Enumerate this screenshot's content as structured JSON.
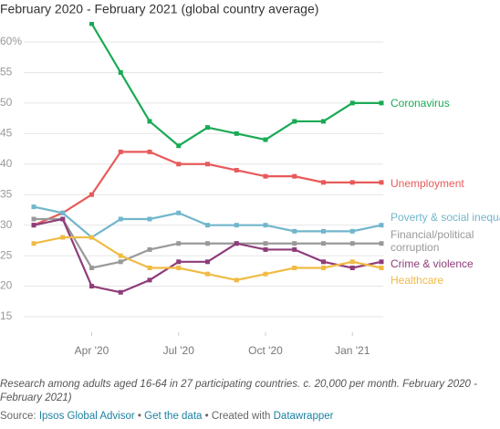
{
  "chart_data": {
    "type": "line",
    "subtitle": "February 2020 - February 2021 (global country average)",
    "categories": [
      null,
      null,
      "Apr '20",
      null,
      null,
      "Jul '20",
      null,
      null,
      "Oct '20",
      null,
      null,
      "Jan '21",
      null
    ],
    "series": [
      {
        "name": "Coronavirus",
        "color": "#1aaa55",
        "values": [
          null,
          null,
          63,
          55,
          47,
          43,
          46,
          45,
          44,
          47,
          47,
          50,
          50
        ]
      },
      {
        "name": "Unemployment",
        "color": "#e85a5a",
        "values": [
          30,
          32,
          35,
          42,
          42,
          40,
          40,
          39,
          38,
          38,
          37,
          37,
          37
        ]
      },
      {
        "name": "Poverty & social inequality",
        "color": "#71b6cc",
        "values": [
          33,
          32,
          28,
          31,
          31,
          32,
          30,
          30,
          30,
          29,
          29,
          29,
          30
        ]
      },
      {
        "name": "Financial/political corruption",
        "color": "#999999",
        "values": [
          31,
          31,
          23,
          24,
          26,
          27,
          27,
          27,
          27,
          27,
          27,
          27,
          27
        ]
      },
      {
        "name": "Crime & violence",
        "color": "#8e3d7a",
        "values": [
          30,
          31,
          20,
          19,
          21,
          24,
          24,
          27,
          26,
          26,
          24,
          23,
          24
        ]
      },
      {
        "name": "Healthcare",
        "color": "#f0bb45",
        "values": [
          27,
          28,
          28,
          25,
          23,
          23,
          22,
          21,
          22,
          23,
          23,
          24,
          23
        ]
      }
    ],
    "ylim": [
      12.3,
      63.6
    ],
    "yticks": [
      15,
      20,
      25,
      30,
      35,
      40,
      45,
      50,
      55,
      {
        "value": 60,
        "label": "60%"
      }
    ],
    "grid": true,
    "note": "Research among adults aged 16-64 in 27 participating countries. c. 20,000 per month. February 2020 - February 2021)",
    "source_label": "Source:",
    "source": "Ipsos Global Advisor",
    "separator": "•",
    "get_data": "Get the data",
    "credit": "Created with",
    "credit_link": "Datawrapper"
  }
}
